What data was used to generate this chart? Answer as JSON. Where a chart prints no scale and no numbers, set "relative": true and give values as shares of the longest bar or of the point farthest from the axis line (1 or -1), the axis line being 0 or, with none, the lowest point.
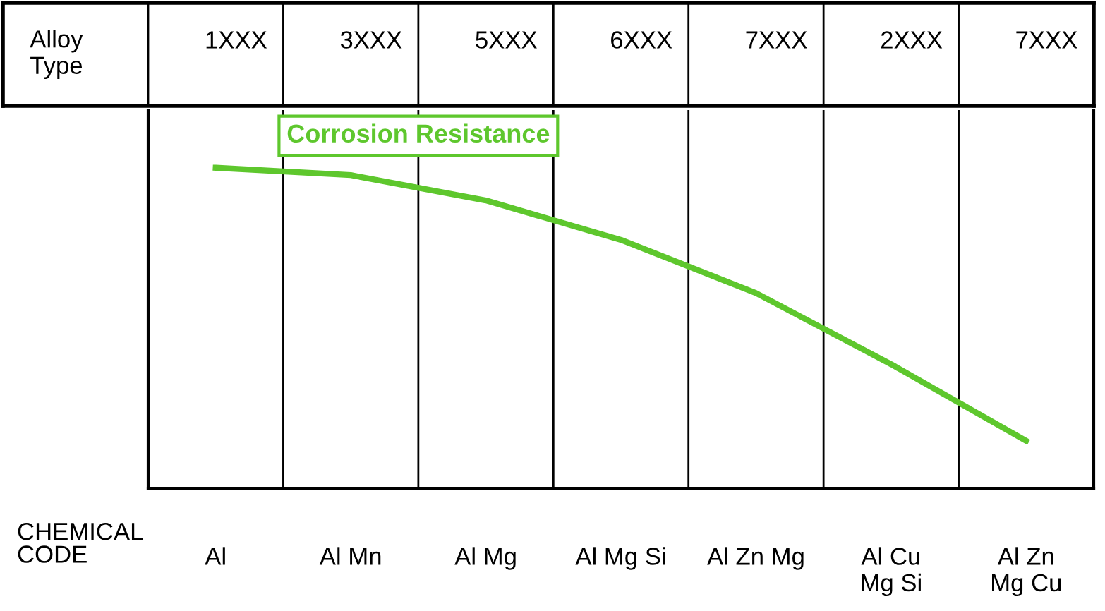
{
  "chart_data": {
    "type": "line",
    "relative": true,
    "categories": [
      "Al",
      "Al Mn",
      "Al Mg",
      "Al Mg Si",
      "Al Zn Mg",
      "Al Cu\nMg Si",
      "Al Zn\nMg Cu"
    ],
    "xlabel": "CHEMICAL\nCODE",
    "annotations": [
      "Alloy\nType",
      "1XXX",
      "3XXX",
      "5XXX",
      "6XXX",
      "7XXX",
      "2XXX",
      "7XXX"
    ],
    "series": [
      {
        "name": "Corrosion Resistance",
        "color": "#5ec72d",
        "values": [
          1,
          0.977,
          0.898,
          0.775,
          0.609,
          0.387,
          0.148
        ]
      }
    ],
    "legend": false,
    "marker": "none",
    "line_style": "solid"
  }
}
